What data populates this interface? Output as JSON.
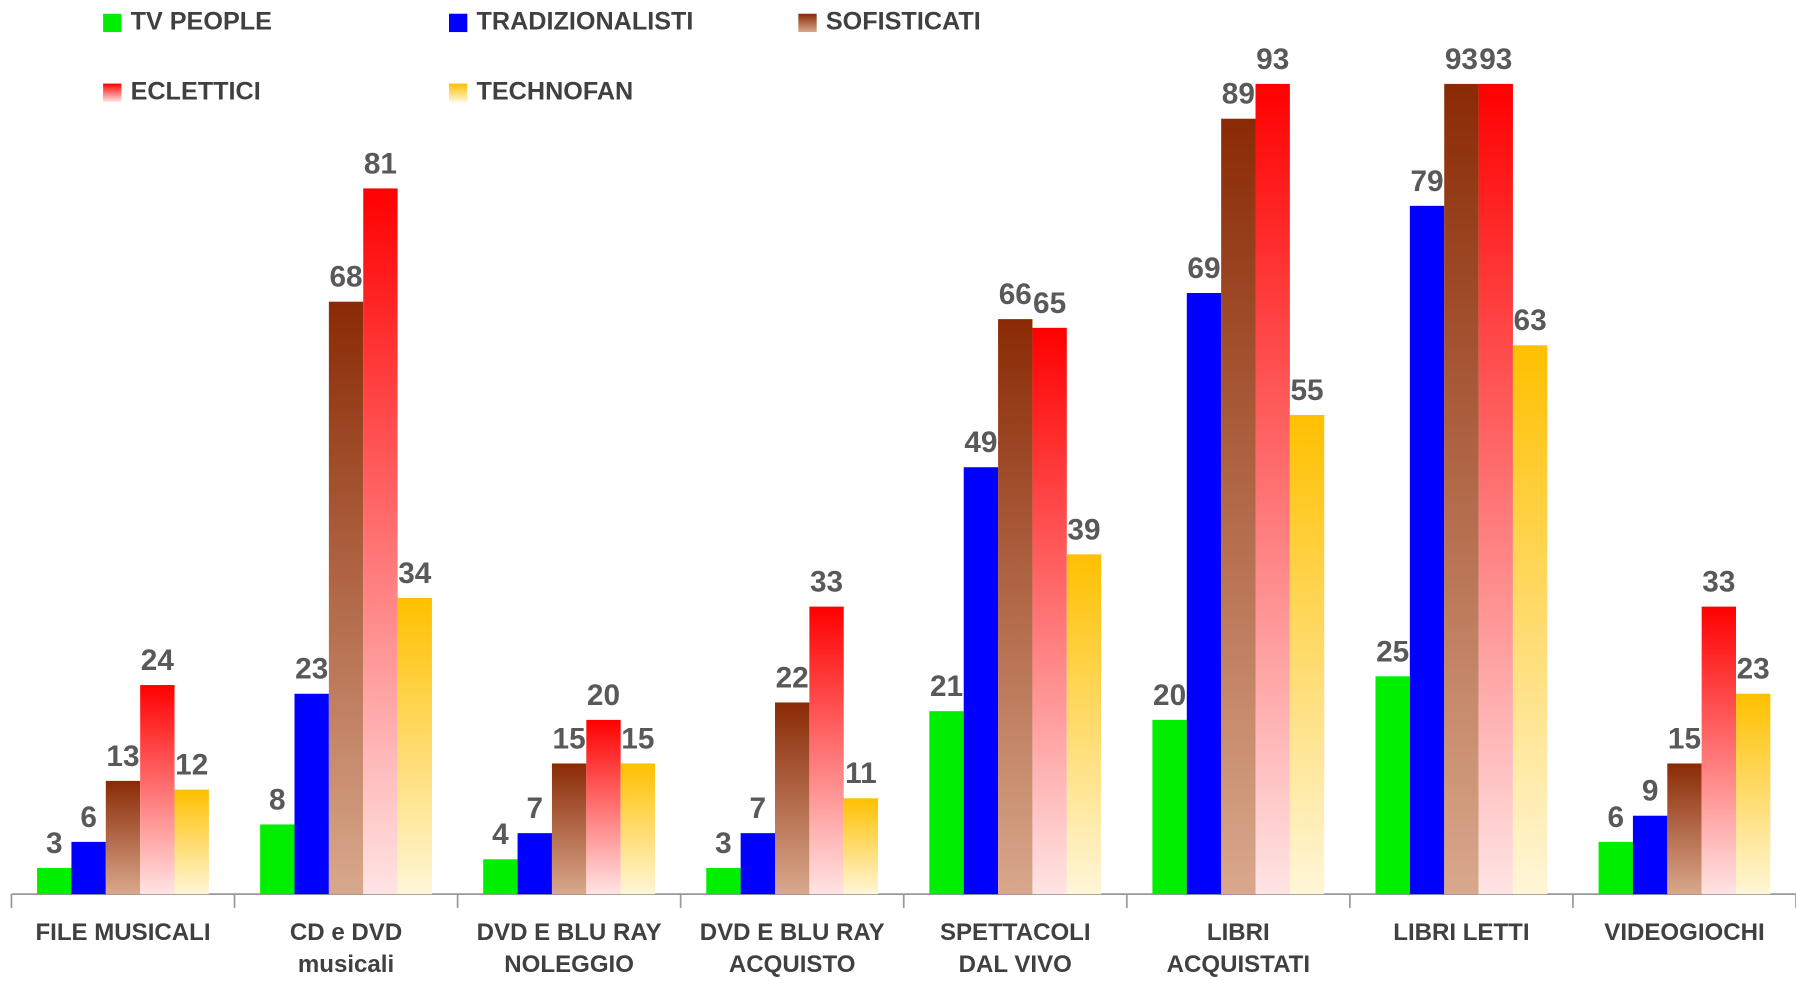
{
  "chart_data": {
    "type": "bar",
    "categories": [
      "FILE MUSICALI",
      "CD e DVD\nmusicali",
      "DVD E BLU RAY\nNOLEGGIO",
      "DVD E BLU RAY\nACQUISTO",
      "SPETTACOLI\nDAL VIVO",
      "LIBRI\nACQUISTATI",
      "LIBRI LETTI",
      "VIDEOGIOCHI"
    ],
    "series": [
      {
        "name": "TV PEOPLE",
        "color": "#00ee00",
        "values": [
          3,
          8,
          4,
          3,
          21,
          20,
          25,
          6
        ]
      },
      {
        "name": "TRADIZIONALISTI",
        "color": "#0000ff",
        "values": [
          6,
          23,
          7,
          7,
          49,
          69,
          79,
          9
        ]
      },
      {
        "name": "SOFISTICATI",
        "color": "#8a2a05",
        "gradient": "#d9a88c",
        "values": [
          13,
          68,
          15,
          22,
          66,
          89,
          93,
          15
        ]
      },
      {
        "name": "ECLETTICI",
        "color": "#ff0000",
        "gradient": "#ffe4e4",
        "values": [
          24,
          81,
          20,
          33,
          65,
          93,
          93,
          33
        ]
      },
      {
        "name": "TECHNOFAN",
        "color": "#ffc000",
        "gradient": "#fff6d8",
        "values": [
          12,
          34,
          15,
          11,
          39,
          55,
          63,
          23
        ]
      }
    ],
    "ylim": [
      0,
      100
    ],
    "grid": false,
    "legend": "top"
  }
}
